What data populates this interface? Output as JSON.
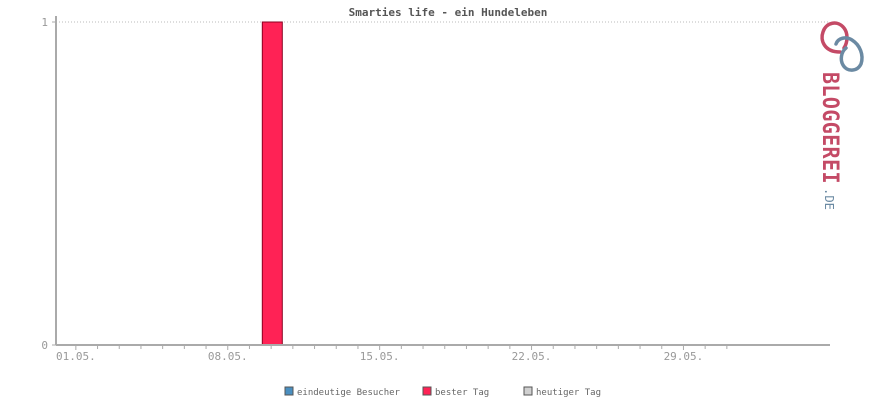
{
  "chart_data": {
    "type": "bar",
    "title": "Smarties life - ein Hundeleben",
    "xlabel": "",
    "ylabel": "",
    "x_start_day": 1,
    "x_end_day": 31,
    "x_tick_labels": [
      "01.05.",
      "08.05.",
      "15.05.",
      "22.05.",
      "29.05."
    ],
    "x_tick_days": [
      1,
      8,
      15,
      22,
      29
    ],
    "ylim": [
      0,
      1
    ],
    "y_ticks": [
      0,
      1
    ],
    "grid": true,
    "legend_position": "bottom",
    "series": [
      {
        "name": "eindeutige Besucher",
        "color": "#4a8fc0",
        "values": []
      },
      {
        "name": "bester Tag",
        "color": "#ff2255",
        "values": [
          {
            "day": 10,
            "value": 1
          }
        ]
      },
      {
        "name": "heutiger Tag",
        "color": "#d0d0d0",
        "values": []
      }
    ]
  },
  "logo": {
    "text": "BLOGGEREI",
    "suffix": ".DE"
  },
  "colors": {
    "axis": "#aaaaaa",
    "tick_label": "#999999",
    "title": "#555555",
    "grid": "#bbbbbb",
    "logo_main": "#c44a66",
    "logo_suffix": "#6b8aa3"
  }
}
